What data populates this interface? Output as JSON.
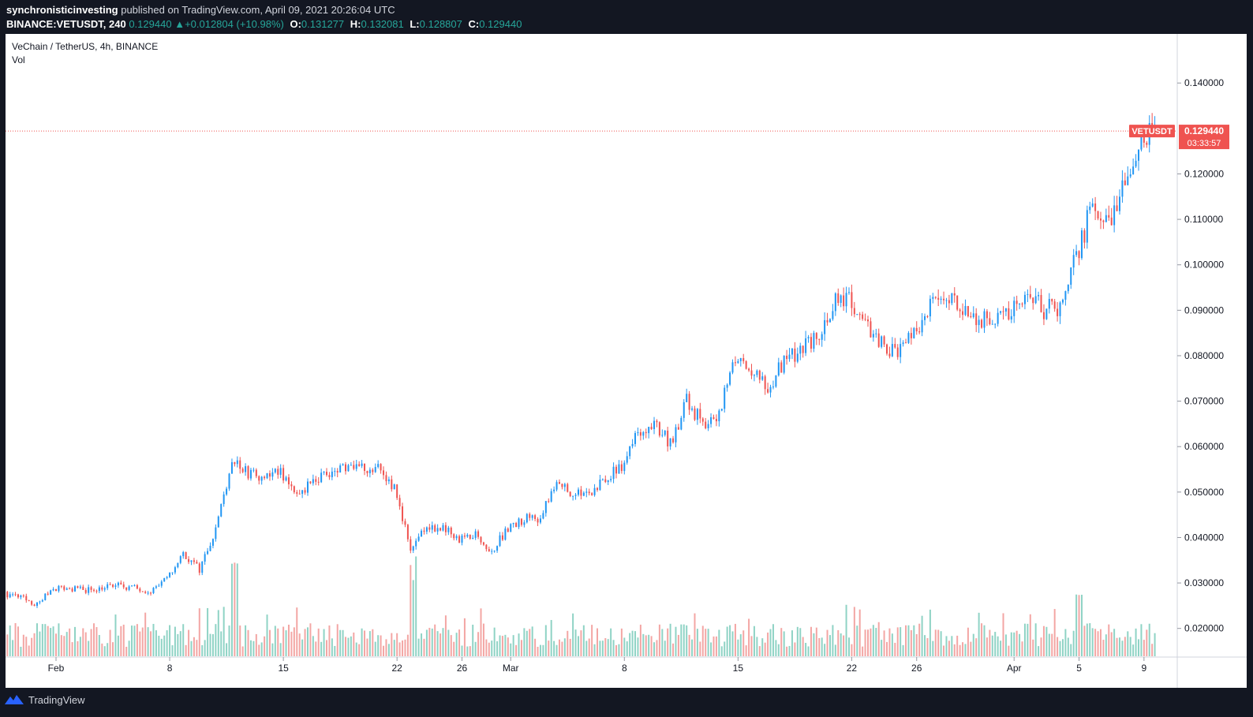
{
  "header": {
    "author": "synchronisticinvesting",
    "published_text": "published on TradingView.com, April 09, 2021 20:26:04 UTC",
    "symbol_line": "BINANCE:VETUSDT, 240",
    "last": "0.129440",
    "change": "+0.012804 (+10.98%)",
    "o_label": "O:",
    "o": "0.131277",
    "h_label": "H:",
    "h": "0.132081",
    "l_label": "L:",
    "l": "0.128807",
    "c_label": "C:",
    "c": "0.129440"
  },
  "legend": {
    "symbol": "VeChain / TetherUS, 4h, BINANCE",
    "volume": "Vol"
  },
  "price_tag": {
    "symbol": "VETUSDT",
    "price": "0.129440",
    "countdown": "03:33:57"
  },
  "footer": {
    "brand": "TradingView"
  },
  "colors": {
    "up": "#2196f3",
    "down": "#ef5350",
    "vol_up": "#8fd3c5",
    "vol_down": "#f3a6a4",
    "bg": "#131722"
  },
  "chart_data": {
    "type": "candlestick",
    "interval": "4h",
    "y_ticks": [
      "0.020000",
      "0.030000",
      "0.040000",
      "0.050000",
      "0.060000",
      "0.070000",
      "0.080000",
      "0.090000",
      "0.100000",
      "0.110000",
      "0.120000",
      "0.140000"
    ],
    "x_ticks": [
      "Feb",
      "8",
      "15",
      "22",
      "26",
      "Mar",
      "8",
      "15",
      "22",
      "26",
      "Apr",
      "5",
      "9"
    ],
    "ylim": [
      0.0137,
      0.1508
    ],
    "close_path": [
      [
        "2021-01-28",
        0.0285
      ],
      [
        "2021-01-30",
        0.0268
      ],
      [
        "2021-01-31",
        0.0252
      ],
      [
        "2021-02-01",
        0.029
      ],
      [
        "2021-02-03",
        0.0285
      ],
      [
        "2021-02-05",
        0.0295
      ],
      [
        "2021-02-07",
        0.0283
      ],
      [
        "2021-02-08",
        0.0308
      ],
      [
        "2021-02-09",
        0.0365
      ],
      [
        "2021-02-10",
        0.033
      ],
      [
        "2021-02-11",
        0.042
      ],
      [
        "2021-02-12",
        0.057
      ],
      [
        "2021-02-13",
        0.054
      ],
      [
        "2021-02-14",
        0.053
      ],
      [
        "2021-02-15",
        0.0545
      ],
      [
        "2021-02-16",
        0.05
      ],
      [
        "2021-02-17",
        0.052
      ],
      [
        "2021-02-18",
        0.0545
      ],
      [
        "2021-02-19",
        0.0555
      ],
      [
        "2021-02-20",
        0.055
      ],
      [
        "2021-02-21",
        0.056
      ],
      [
        "2021-02-22",
        0.051
      ],
      [
        "2021-02-23",
        0.038
      ],
      [
        "2021-02-24",
        0.0425
      ],
      [
        "2021-02-25",
        0.042
      ],
      [
        "2021-02-26",
        0.0395
      ],
      [
        "2021-02-27",
        0.041
      ],
      [
        "2021-02-28",
        0.037
      ],
      [
        "2021-03-01",
        0.042
      ],
      [
        "2021-03-02",
        0.044
      ],
      [
        "2021-03-03",
        0.0445
      ],
      [
        "2021-03-04",
        0.052
      ],
      [
        "2021-03-05",
        0.05
      ],
      [
        "2021-03-06",
        0.049
      ],
      [
        "2021-03-07",
        0.053
      ],
      [
        "2021-03-08",
        0.0555
      ],
      [
        "2021-03-09",
        0.063
      ],
      [
        "2021-03-10",
        0.065
      ],
      [
        "2021-03-11",
        0.0605
      ],
      [
        "2021-03-12",
        0.07
      ],
      [
        "2021-03-13",
        0.065
      ],
      [
        "2021-03-14",
        0.067
      ],
      [
        "2021-03-15",
        0.08
      ],
      [
        "2021-03-16",
        0.076
      ],
      [
        "2021-03-17",
        0.073
      ],
      [
        "2021-03-18",
        0.079
      ],
      [
        "2021-03-19",
        0.0815
      ],
      [
        "2021-03-20",
        0.084
      ],
      [
        "2021-03-21",
        0.091
      ],
      [
        "2021-03-22",
        0.094
      ],
      [
        "2021-03-23",
        0.086
      ],
      [
        "2021-03-24",
        0.083
      ],
      [
        "2021-03-25",
        0.08
      ],
      [
        "2021-03-26",
        0.085
      ],
      [
        "2021-03-27",
        0.091
      ],
      [
        "2021-03-28",
        0.092
      ],
      [
        "2021-03-29",
        0.091
      ],
      [
        "2021-03-30",
        0.088
      ],
      [
        "2021-03-31",
        0.087
      ],
      [
        "2021-04-01",
        0.089
      ],
      [
        "2021-04-02",
        0.095
      ],
      [
        "2021-04-03",
        0.09
      ],
      [
        "2021-04-04",
        0.091
      ],
      [
        "2021-04-05",
        0.102
      ],
      [
        "2021-04-06",
        0.113
      ],
      [
        "2021-04-07",
        0.11
      ],
      [
        "2021-04-08",
        0.117
      ],
      [
        "2021-04-09",
        0.1294
      ]
    ],
    "volume_spikes": [
      [
        "2021-02-12",
        "high"
      ],
      [
        "2021-02-23",
        "high"
      ],
      [
        "2021-04-05",
        "medium"
      ]
    ],
    "last_price": 0.12944
  }
}
